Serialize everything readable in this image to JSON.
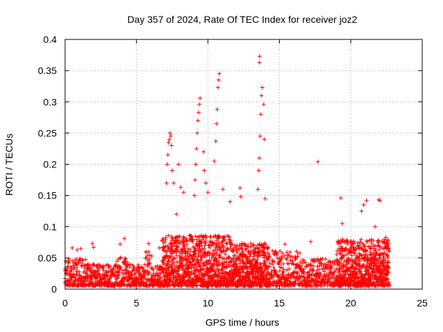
{
  "chart_data": {
    "type": "scatter",
    "title": "Day 357 of 2024, Rate Of TEC Index for receiver joz2",
    "xlabel": "GPS time / hours",
    "ylabel": "ROTI / TECUs",
    "xlim": [
      0,
      25
    ],
    "ylim": [
      0,
      0.4
    ],
    "grid": true,
    "marker": "plus",
    "series_color": "#ff0000",
    "x_ticks": [
      "0",
      "5",
      "10",
      "15",
      "20",
      "25"
    ],
    "y_ticks": [
      "0",
      "0.05",
      "0.1",
      "0.15",
      "0.2",
      "0.25",
      "0.3",
      "0.35",
      "0.4"
    ],
    "outliers": [
      [
        0.5,
        0.066
      ],
      [
        0.85,
        0.063
      ],
      [
        1.1,
        0.065
      ],
      [
        1.9,
        0.073
      ],
      [
        2.0,
        0.067
      ],
      [
        3.85,
        0.072
      ],
      [
        4.15,
        0.081
      ],
      [
        5.85,
        0.073
      ],
      [
        6.6,
        0.066
      ],
      [
        7.1,
        0.17
      ],
      [
        7.15,
        0.2
      ],
      [
        7.2,
        0.215
      ],
      [
        7.25,
        0.235
      ],
      [
        7.3,
        0.24
      ],
      [
        7.35,
        0.25
      ],
      [
        7.4,
        0.245
      ],
      [
        7.45,
        0.23
      ],
      [
        7.5,
        0.19
      ],
      [
        7.6,
        0.17
      ],
      [
        7.8,
        0.12
      ],
      [
        7.95,
        0.2
      ],
      [
        8.1,
        0.163
      ],
      [
        8.3,
        0.155
      ],
      [
        9.05,
        0.15
      ],
      [
        9.1,
        0.175
      ],
      [
        9.15,
        0.2
      ],
      [
        9.2,
        0.225
      ],
      [
        9.25,
        0.25
      ],
      [
        9.3,
        0.27
      ],
      [
        9.35,
        0.283
      ],
      [
        9.4,
        0.296
      ],
      [
        9.45,
        0.306
      ],
      [
        9.7,
        0.22
      ],
      [
        9.75,
        0.19
      ],
      [
        9.85,
        0.17
      ],
      [
        10.0,
        0.155
      ],
      [
        10.45,
        0.205
      ],
      [
        10.55,
        0.237
      ],
      [
        10.6,
        0.265
      ],
      [
        10.65,
        0.288
      ],
      [
        10.7,
        0.323
      ],
      [
        10.75,
        0.335
      ],
      [
        10.8,
        0.345
      ],
      [
        11.05,
        0.16
      ],
      [
        11.55,
        0.14
      ],
      [
        12.25,
        0.162
      ],
      [
        12.3,
        0.148
      ],
      [
        13.5,
        0.16
      ],
      [
        13.55,
        0.19
      ],
      [
        13.6,
        0.21
      ],
      [
        13.65,
        0.245
      ],
      [
        13.7,
        0.28
      ],
      [
        13.75,
        0.31
      ],
      [
        13.8,
        0.323
      ],
      [
        13.6,
        0.363
      ],
      [
        13.62,
        0.373
      ],
      [
        13.9,
        0.296
      ],
      [
        13.95,
        0.24
      ],
      [
        14.0,
        0.145
      ],
      [
        15.4,
        0.072
      ],
      [
        17.2,
        0.076
      ],
      [
        17.7,
        0.204
      ],
      [
        19.3,
        0.146
      ],
      [
        19.4,
        0.105
      ],
      [
        20.75,
        0.125
      ],
      [
        20.9,
        0.135
      ],
      [
        21.1,
        0.142
      ],
      [
        21.95,
        0.143
      ],
      [
        22.05,
        0.142
      ],
      [
        21.7,
        0.1
      ],
      [
        22.45,
        0.083
      ],
      [
        22.6,
        0.078
      ]
    ]
  }
}
